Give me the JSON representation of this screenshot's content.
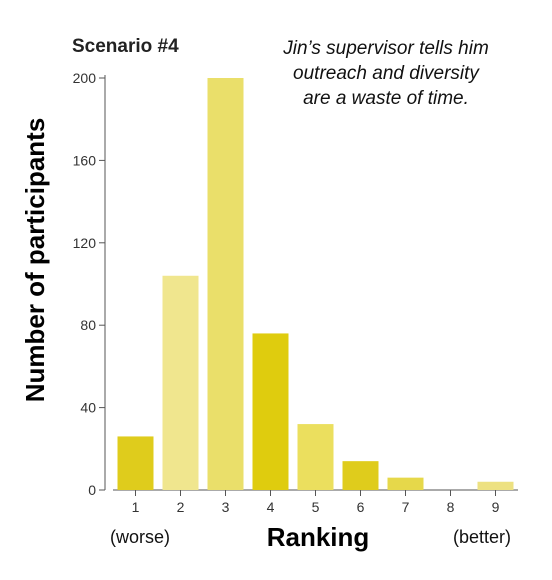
{
  "chart_data": {
    "type": "bar",
    "title": "Scenario #4",
    "annotation_lines": [
      "Jin’s supervisor tells him",
      "outreach and diversity",
      "are a waste of time."
    ],
    "xlabel": "Ranking",
    "ylabel": "Number of participants",
    "x_left_note": "(worse)",
    "x_right_note": "(better)",
    "categories": [
      "1",
      "2",
      "3",
      "4",
      "5",
      "6",
      "7",
      "8",
      "9"
    ],
    "values": [
      26,
      104,
      200,
      76,
      32,
      14,
      6,
      0,
      4
    ],
    "ylim": [
      0,
      200
    ],
    "yticks": [
      0,
      40,
      80,
      120,
      160,
      200
    ],
    "bar_colors": [
      "#dfcc1c",
      "#f0e68e",
      "#eadf6a",
      "#dfcc0e",
      "#ebdf5e",
      "#dfcc1c",
      "#e6d84a",
      "#e6d84a",
      "#ede181"
    ],
    "grid": false
  }
}
